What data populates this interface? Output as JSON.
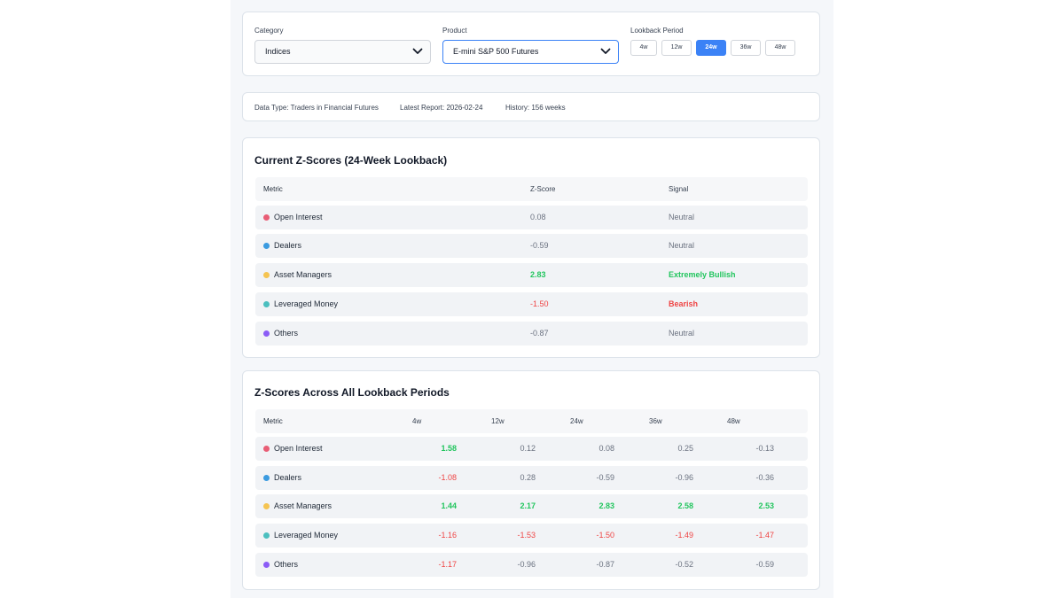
{
  "controls": {
    "category_label": "Category",
    "category_value": "Indices",
    "product_label": "Product",
    "product_value": "E-mini S&P 500 Futures",
    "lookback_label": "Lookback Period",
    "periods": [
      "4w",
      "12w",
      "24w",
      "36w",
      "48w"
    ],
    "active_period": "24w"
  },
  "info": {
    "data_type": "Data Type: Traders in Financial Futures",
    "latest_report": "Latest Report: 2026-02-24",
    "history": "History: 156 weeks"
  },
  "current": {
    "title": "Current Z-Scores (24-Week Lookback)",
    "headers": {
      "metric": "Metric",
      "zscore": "Z-Score",
      "signal": "Signal"
    },
    "rows": [
      {
        "metric": "Open Interest",
        "z": "0.08",
        "signal": "Neutral"
      },
      {
        "metric": "Dealers",
        "z": "-0.59",
        "signal": "Neutral"
      },
      {
        "metric": "Asset Managers",
        "z": "2.83",
        "signal": "Extremely Bullish"
      },
      {
        "metric": "Leveraged Money",
        "z": "-1.50",
        "signal": "Bearish"
      },
      {
        "metric": "Others",
        "z": "-0.87",
        "signal": "Neutral"
      }
    ]
  },
  "across": {
    "title": "Z-Scores Across All Lookback Periods",
    "headers": {
      "metric": "Metric",
      "p4": "4w",
      "p12": "12w",
      "p24": "24w",
      "p36": "36w",
      "p48": "48w"
    },
    "rows": [
      {
        "metric": "Open Interest",
        "v": [
          "1.58",
          "0.12",
          "0.08",
          "0.25",
          "-0.13"
        ]
      },
      {
        "metric": "Dealers",
        "v": [
          "-1.08",
          "0.28",
          "-0.59",
          "-0.96",
          "-0.36"
        ]
      },
      {
        "metric": "Asset Managers",
        "v": [
          "1.44",
          "2.17",
          "2.83",
          "2.58",
          "2.53"
        ]
      },
      {
        "metric": "Leveraged Money",
        "v": [
          "-1.16",
          "-1.53",
          "-1.50",
          "-1.49",
          "-1.47"
        ]
      },
      {
        "metric": "Others",
        "v": [
          "-1.17",
          "-0.96",
          "-0.87",
          "-0.52",
          "-0.59"
        ]
      }
    ]
  },
  "colors": {
    "accent": "#3b82f6",
    "positive": "#22c55e",
    "negative": "#ef4444",
    "neutral": "#6b7280",
    "open_interest": "#e85d75",
    "dealers": "#3b9be0",
    "asset_managers": "#f5c451",
    "leveraged_money": "#4bbfbf",
    "others": "#8b5cf6"
  }
}
